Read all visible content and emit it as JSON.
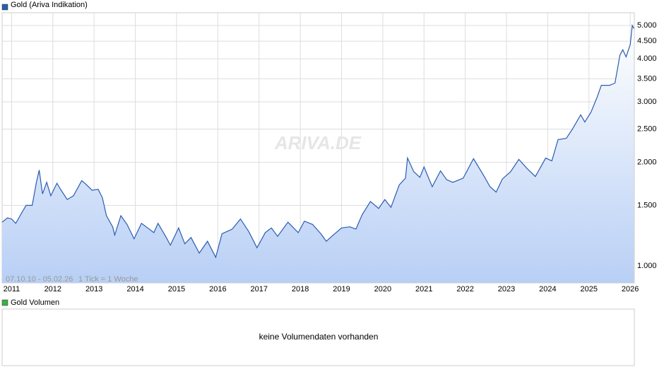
{
  "chart_data": {
    "type": "line",
    "title": "Gold (Ariva Indikation)",
    "date_range": "07.10.10 - 05.02.26",
    "tick_note": "1 Tick = 1 Woche",
    "watermark": "ARIVA.DE",
    "log_scale": true,
    "grid": true,
    "xlim": [
      2010.77,
      2026.1
    ],
    "xticks": [
      2011,
      2012,
      2013,
      2014,
      2015,
      2016,
      2017,
      2018,
      2019,
      2020,
      2021,
      2022,
      2023,
      2024,
      2025,
      2026
    ],
    "ylim": [
      893,
      5445
    ],
    "yticks": [
      {
        "value": 1000,
        "label": "1.000"
      },
      {
        "value": 1500,
        "label": "1.500"
      },
      {
        "value": 2000,
        "label": "2.000"
      },
      {
        "value": 2500,
        "label": "2.500"
      },
      {
        "value": 3000,
        "label": "3.000"
      },
      {
        "value": 3500,
        "label": "3.500"
      },
      {
        "value": 4000,
        "label": "4.000"
      },
      {
        "value": 4500,
        "label": "4.500"
      },
      {
        "value": 5000,
        "label": "5.000"
      }
    ],
    "series": [
      {
        "name": "Gold (Ariva Indikation)",
        "color": "#2a5db0",
        "x": [
          2010.77,
          2010.9,
          2011.0,
          2011.1,
          2011.25,
          2011.35,
          2011.5,
          2011.6,
          2011.67,
          2011.75,
          2011.85,
          2011.95,
          2012.1,
          2012.2,
          2012.35,
          2012.5,
          2012.7,
          2012.8,
          2012.95,
          2013.1,
          2013.2,
          2013.3,
          2013.45,
          2013.5,
          2013.65,
          2013.8,
          2013.97,
          2014.15,
          2014.3,
          2014.45,
          2014.55,
          2014.75,
          2014.85,
          2015.05,
          2015.2,
          2015.35,
          2015.55,
          2015.75,
          2015.95,
          2016.1,
          2016.35,
          2016.55,
          2016.75,
          2016.95,
          2017.15,
          2017.3,
          2017.45,
          2017.7,
          2017.95,
          2018.1,
          2018.3,
          2018.5,
          2018.63,
          2018.8,
          2019.0,
          2019.2,
          2019.35,
          2019.5,
          2019.7,
          2019.9,
          2020.05,
          2020.2,
          2020.4,
          2020.55,
          2020.6,
          2020.75,
          2020.9,
          2021.0,
          2021.2,
          2021.4,
          2021.55,
          2021.7,
          2021.95,
          2022.2,
          2022.45,
          2022.6,
          2022.75,
          2022.9,
          2023.1,
          2023.3,
          2023.5,
          2023.7,
          2023.95,
          2024.1,
          2024.25,
          2024.45,
          2024.6,
          2024.8,
          2024.9,
          2025.05,
          2025.2,
          2025.3,
          2025.5,
          2025.63,
          2025.75,
          2025.82,
          2025.9,
          2026.0,
          2026.05,
          2026.09
        ],
        "values": [
          1340,
          1380,
          1370,
          1330,
          1430,
          1500,
          1500,
          1750,
          1900,
          1620,
          1750,
          1600,
          1740,
          1660,
          1560,
          1600,
          1770,
          1730,
          1660,
          1670,
          1580,
          1400,
          1300,
          1230,
          1400,
          1320,
          1200,
          1330,
          1290,
          1250,
          1330,
          1210,
          1150,
          1290,
          1160,
          1210,
          1090,
          1180,
          1060,
          1240,
          1280,
          1370,
          1260,
          1130,
          1250,
          1290,
          1220,
          1340,
          1250,
          1350,
          1320,
          1240,
          1180,
          1230,
          1290,
          1300,
          1280,
          1410,
          1540,
          1470,
          1560,
          1480,
          1720,
          1800,
          2060,
          1880,
          1810,
          1940,
          1700,
          1890,
          1780,
          1750,
          1800,
          2050,
          1830,
          1700,
          1640,
          1790,
          1880,
          2040,
          1920,
          1820,
          2060,
          2020,
          2330,
          2350,
          2500,
          2750,
          2620,
          2800,
          3100,
          3350,
          3350,
          3400,
          4100,
          4250,
          4050,
          4400,
          5000,
          4900
        ]
      }
    ],
    "volume_title": "Gold Volumen",
    "volume_color": "#3cb043",
    "volume_message": "keine Volumendaten vorhanden"
  }
}
